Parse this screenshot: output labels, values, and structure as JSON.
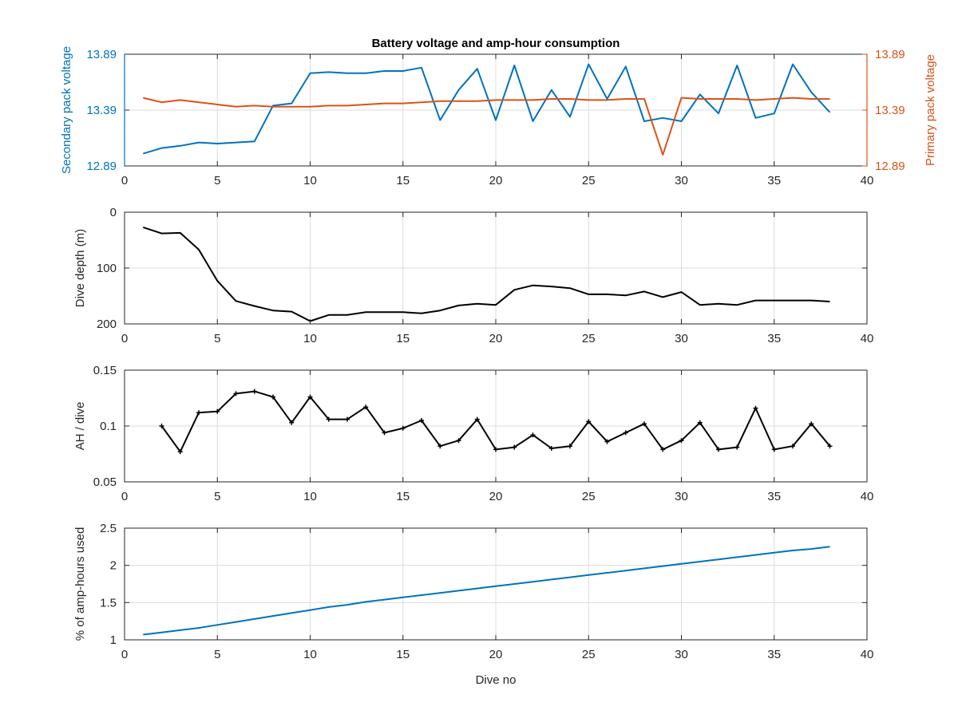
{
  "figure": {
    "title": "Battery voltage and amp-hour consumption",
    "xlabel": "Dive no"
  },
  "colors": {
    "blue": "#0072BD",
    "orange": "#D95319",
    "black": "#000000",
    "axis": "#262626",
    "grid": "#dcdcdc"
  },
  "chart_data": [
    {
      "type": "line",
      "name": "voltage",
      "title": "Battery voltage and amp-hour consumption",
      "xlabel": "",
      "xlim": [
        0,
        40
      ],
      "xticks": [
        0,
        5,
        10,
        15,
        20,
        25,
        30,
        35,
        40
      ],
      "grid": true,
      "y_left": {
        "label": "Secondary pack voltage",
        "ylim": [
          12.89,
          13.89
        ],
        "ticks": [
          12.89,
          13.39,
          13.89
        ],
        "tick_labels": [
          "12.89",
          "13.39",
          "13.89"
        ],
        "color": "#0072BD"
      },
      "y_right": {
        "label": "Primary pack voltage",
        "ylim": [
          12.89,
          13.89
        ],
        "ticks": [
          12.89,
          13.39,
          13.89
        ],
        "tick_labels": [
          "12.89",
          "13.39",
          "13.89"
        ],
        "color": "#D95319"
      },
      "series": [
        {
          "axis": "left",
          "color": "#0072BD",
          "x": [
            1,
            2,
            3,
            4,
            5,
            6,
            7,
            8,
            9,
            10,
            11,
            12,
            13,
            14,
            15,
            16,
            17,
            18,
            19,
            20,
            21,
            22,
            23,
            24,
            25,
            26,
            27,
            28,
            29,
            30,
            31,
            32,
            33,
            34,
            35,
            36,
            37,
            38
          ],
          "y": [
            13.0,
            13.05,
            13.07,
            13.1,
            13.09,
            13.1,
            13.11,
            13.43,
            13.45,
            13.72,
            13.73,
            13.72,
            13.72,
            13.74,
            13.74,
            13.77,
            13.3,
            13.57,
            13.76,
            13.3,
            13.79,
            13.29,
            13.57,
            13.33,
            13.8,
            13.49,
            13.78,
            13.29,
            13.32,
            13.29,
            13.53,
            13.36,
            13.79,
            13.32,
            13.36,
            13.8,
            13.55,
            13.37
          ]
        },
        {
          "axis": "right",
          "color": "#D95319",
          "x": [
            1,
            2,
            3,
            4,
            5,
            6,
            7,
            8,
            9,
            10,
            11,
            12,
            13,
            14,
            15,
            16,
            17,
            18,
            19,
            20,
            21,
            22,
            23,
            24,
            25,
            26,
            27,
            28,
            29,
            30,
            31,
            32,
            33,
            34,
            35,
            36,
            37,
            38
          ],
          "y": [
            13.5,
            13.46,
            13.48,
            13.46,
            13.44,
            13.42,
            13.43,
            13.42,
            13.42,
            13.42,
            13.43,
            13.43,
            13.44,
            13.45,
            13.45,
            13.46,
            13.47,
            13.47,
            13.47,
            13.48,
            13.48,
            13.48,
            13.49,
            13.49,
            13.48,
            13.48,
            13.49,
            13.49,
            12.99,
            13.5,
            13.49,
            13.49,
            13.49,
            13.48,
            13.49,
            13.5,
            13.49,
            13.49
          ]
        }
      ]
    },
    {
      "type": "line",
      "name": "depth",
      "xlabel": "",
      "xlim": [
        0,
        40
      ],
      "xticks": [
        0,
        5,
        10,
        15,
        20,
        25,
        30,
        35,
        40
      ],
      "grid": true,
      "y_left": {
        "label": "Dive depth (m)",
        "ylim": [
          0,
          200
        ],
        "reversed": true,
        "ticks": [
          0,
          100,
          200
        ],
        "tick_labels": [
          "0",
          "100",
          "200"
        ],
        "color": "#262626"
      },
      "series": [
        {
          "axis": "left",
          "color": "#000000",
          "x": [
            1,
            2,
            3,
            4,
            5,
            6,
            7,
            8,
            9,
            10,
            11,
            12,
            13,
            14,
            15,
            16,
            17,
            18,
            19,
            20,
            21,
            22,
            23,
            24,
            25,
            26,
            27,
            28,
            29,
            30,
            31,
            32,
            33,
            34,
            35,
            36,
            37,
            38
          ],
          "y": [
            27,
            38,
            37,
            67,
            123,
            159,
            168,
            176,
            178,
            195,
            184,
            184,
            179,
            179,
            179,
            181,
            176,
            167,
            164,
            166,
            139,
            131,
            133,
            136,
            147,
            147,
            149,
            142,
            152,
            143,
            166,
            164,
            166,
            158,
            158,
            158,
            158,
            160
          ]
        }
      ]
    },
    {
      "type": "line",
      "name": "ah-per-dive",
      "xlabel": "",
      "xlim": [
        0,
        40
      ],
      "xticks": [
        0,
        5,
        10,
        15,
        20,
        25,
        30,
        35,
        40
      ],
      "grid": true,
      "y_left": {
        "label": "AH / dive",
        "ylim": [
          0.05,
          0.15
        ],
        "ticks": [
          0.05,
          0.1,
          0.15
        ],
        "tick_labels": [
          "0.05",
          "0.1",
          "0.15"
        ],
        "color": "#262626"
      },
      "series": [
        {
          "axis": "left",
          "color": "#000000",
          "markers": true,
          "x": [
            2,
            3,
            4,
            5,
            6,
            7,
            8,
            9,
            10,
            11,
            12,
            13,
            14,
            15,
            16,
            17,
            18,
            19,
            20,
            21,
            22,
            23,
            24,
            25,
            26,
            27,
            28,
            29,
            30,
            31,
            32,
            33,
            34,
            35,
            36,
            37,
            38
          ],
          "y": [
            0.1,
            0.077,
            0.112,
            0.113,
            0.129,
            0.131,
            0.126,
            0.103,
            0.126,
            0.106,
            0.106,
            0.117,
            0.094,
            0.098,
            0.105,
            0.082,
            0.087,
            0.106,
            0.079,
            0.081,
            0.092,
            0.08,
            0.082,
            0.104,
            0.086,
            0.094,
            0.102,
            0.079,
            0.087,
            0.103,
            0.079,
            0.081,
            0.116,
            0.079,
            0.082,
            0.102,
            0.082
          ]
        }
      ]
    },
    {
      "type": "line",
      "name": "pct-ah-used",
      "xlabel": "Dive no",
      "xlim": [
        0,
        40
      ],
      "xticks": [
        0,
        5,
        10,
        15,
        20,
        25,
        30,
        35,
        40
      ],
      "grid": true,
      "y_left": {
        "label": "% of amp-hours used",
        "ylim": [
          1,
          2.5
        ],
        "ticks": [
          1,
          1.5,
          2,
          2.5
        ],
        "tick_labels": [
          "1",
          "1.5",
          "2",
          "2.5"
        ],
        "color": "#262626"
      },
      "series": [
        {
          "axis": "left",
          "color": "#0072BD",
          "x": [
            1,
            2,
            3,
            4,
            5,
            6,
            7,
            8,
            9,
            10,
            11,
            12,
            13,
            14,
            15,
            16,
            17,
            18,
            19,
            20,
            21,
            22,
            23,
            24,
            25,
            26,
            27,
            28,
            29,
            30,
            31,
            32,
            33,
            34,
            35,
            36,
            37,
            38
          ],
          "y": [
            1.07,
            1.1,
            1.13,
            1.16,
            1.2,
            1.24,
            1.28,
            1.32,
            1.36,
            1.4,
            1.44,
            1.47,
            1.51,
            1.54,
            1.57,
            1.6,
            1.63,
            1.66,
            1.69,
            1.72,
            1.75,
            1.78,
            1.81,
            1.84,
            1.87,
            1.9,
            1.93,
            1.96,
            1.99,
            2.02,
            2.05,
            2.08,
            2.11,
            2.14,
            2.17,
            2.2,
            2.22,
            2.25
          ]
        }
      ]
    }
  ]
}
